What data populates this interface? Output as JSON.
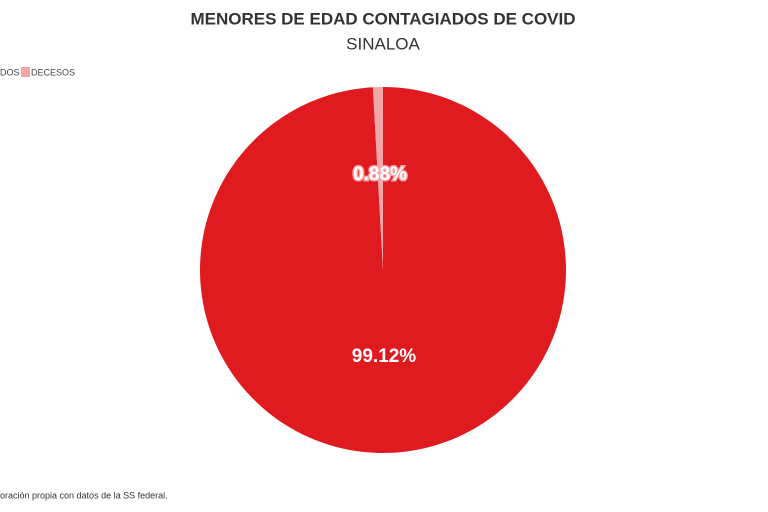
{
  "chart_data": {
    "type": "pie",
    "title": "MENORES DE EDAD CONTAGIADOS DE COVID",
    "subtitle": "SINALOA",
    "categories": [
      "DOS",
      "DECESOS"
    ],
    "values": [
      99.12,
      0.88
    ],
    "value_labels": [
      "99.12%",
      "0.88%"
    ],
    "colors": [
      "#e01b20",
      "#f5a6a8"
    ],
    "legend": "top-left",
    "source": "oración propia con datos de la SS federal."
  }
}
